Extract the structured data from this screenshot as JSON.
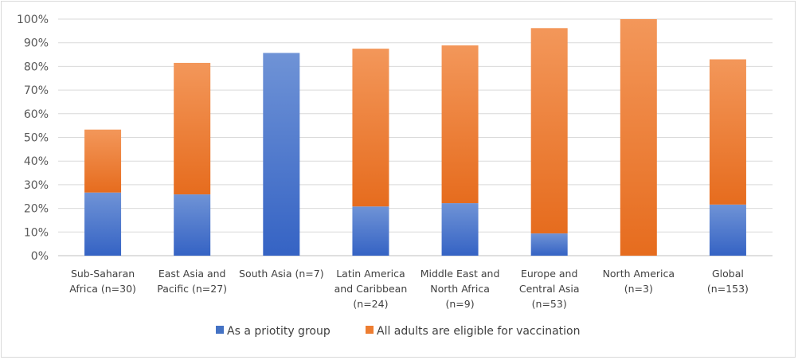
{
  "chart_data": {
    "type": "bar",
    "stacked": true,
    "title": "",
    "xlabel": "",
    "ylabel": "",
    "ylim": [
      0,
      100
    ],
    "y_ticks": [
      "0%",
      "10%",
      "20%",
      "30%",
      "40%",
      "50%",
      "60%",
      "70%",
      "80%",
      "90%",
      "100%"
    ],
    "grid": true,
    "legend_position": "bottom",
    "categories": [
      [
        "Sub-Saharan",
        "Africa (n=30)"
      ],
      [
        "East Asia and",
        "Pacific (n=27)"
      ],
      [
        "South Asia (n=7)"
      ],
      [
        "Latin America",
        "and Caribbean",
        "(n=24)"
      ],
      [
        "Middle East and",
        "North Africa",
        "(n=9)"
      ],
      [
        "Europe and",
        "Central Asia",
        "(n=53)"
      ],
      [
        "North America",
        "(n=3)"
      ],
      [
        "Global",
        "(n=153)"
      ]
    ],
    "series": [
      {
        "name": "As a priotity group",
        "color": "#4472c4",
        "values": [
          26.7,
          25.9,
          85.7,
          20.8,
          22.2,
          9.4,
          0,
          21.6
        ]
      },
      {
        "name": "All adults are eligible for vaccination",
        "color": "#ed7d31",
        "values": [
          26.6,
          55.6,
          0,
          66.7,
          66.7,
          86.8,
          100,
          61.4
        ]
      }
    ]
  }
}
